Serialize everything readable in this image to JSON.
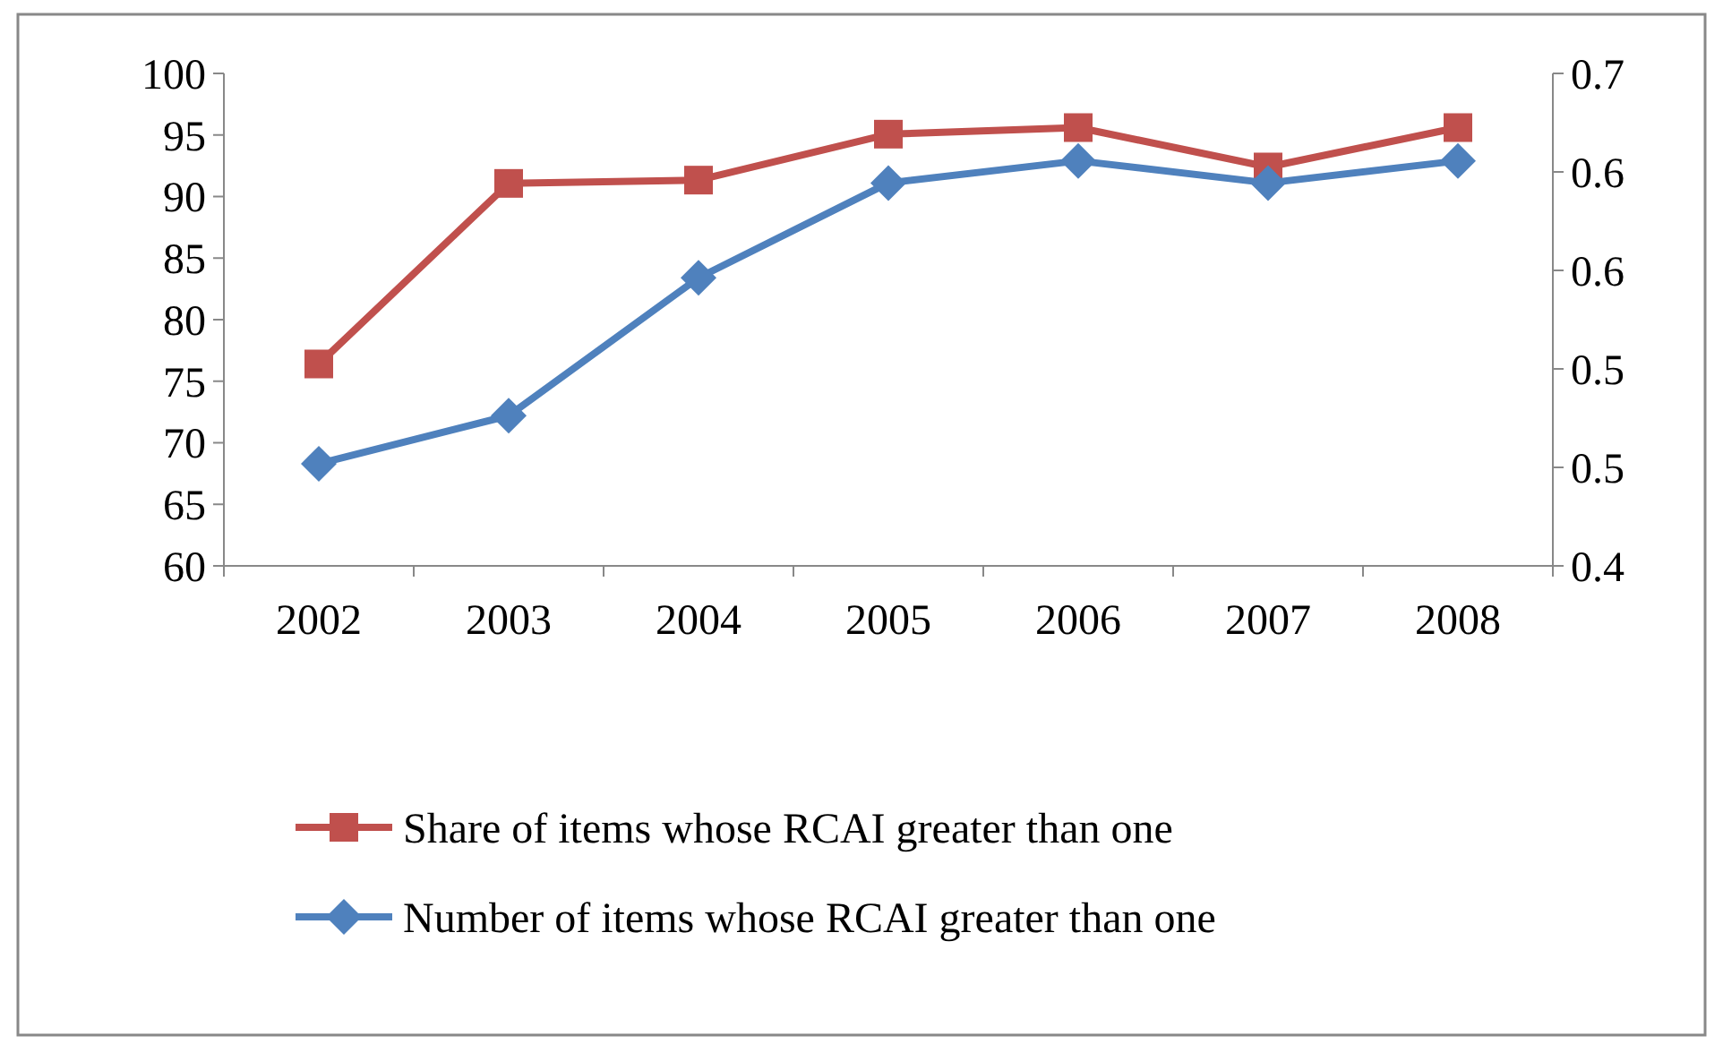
{
  "chart_data": {
    "type": "line",
    "categories": [
      "2002",
      "2003",
      "2004",
      "2005",
      "2006",
      "2007",
      "2008"
    ],
    "series": [
      {
        "name": "Share of items whose RCAI greater than one",
        "color": "#c0504d",
        "marker": "square",
        "axis": "y2",
        "values": [
          0.523,
          0.633,
          0.635,
          0.663,
          0.667,
          0.643,
          0.667
        ]
      },
      {
        "name": "Number of items whose RCAI greater than one",
        "color": "#4f81bd",
        "marker": "diamond",
        "values": [
          68.3,
          72.2,
          83.4,
          91.1,
          92.9,
          91.1,
          92.9
        ]
      }
    ],
    "ylim": [
      60,
      100
    ],
    "yticks": [
      60,
      65,
      70,
      75,
      80,
      85,
      90,
      95,
      100
    ],
    "y2lim": [
      0.4,
      0.7
    ],
    "y2ticks": [
      0.4,
      {
        "value": 0.46,
        "label": "0.5"
      },
      {
        "value": 0.52,
        "label": "0.5"
      },
      {
        "value": 0.58,
        "label": "0.6"
      },
      {
        "value": 0.64,
        "label": "0.6"
      },
      0.7
    ],
    "legend": "bottom",
    "grid": false
  }
}
